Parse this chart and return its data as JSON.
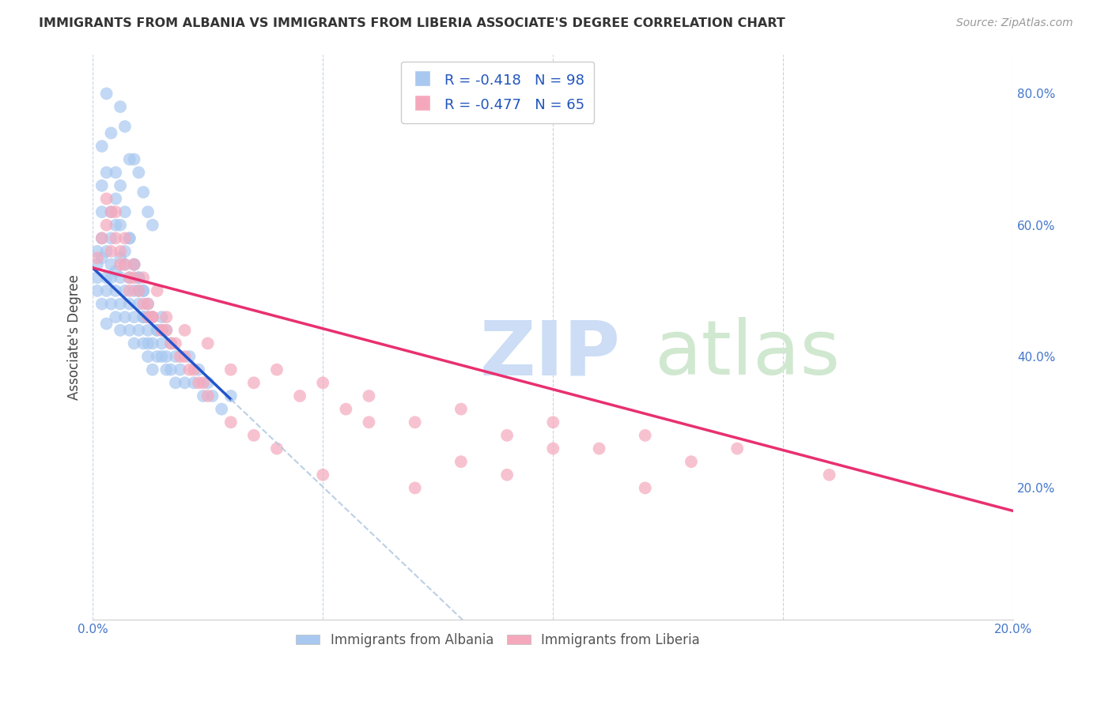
{
  "title": "IMMIGRANTS FROM ALBANIA VS IMMIGRANTS FROM LIBERIA ASSOCIATE'S DEGREE CORRELATION CHART",
  "source": "Source: ZipAtlas.com",
  "ylabel": "Associate's Degree",
  "x_min": 0.0,
  "x_max": 0.2,
  "y_min": 0.0,
  "y_max": 0.86,
  "albania_color": "#a8c8f0",
  "liberia_color": "#f5a8bc",
  "albania_line_color": "#2255cc",
  "liberia_line_color": "#e83070",
  "dash_color": "#b0c8e0",
  "albania_R": "-0.418",
  "albania_N": "98",
  "liberia_R": "-0.477",
  "liberia_N": "65",
  "legend_label_1": "Immigrants from Albania",
  "legend_label_2": "Immigrants from Liberia",
  "albania_scatter_x": [
    0.001,
    0.001,
    0.001,
    0.001,
    0.002,
    0.002,
    0.002,
    0.002,
    0.002,
    0.003,
    0.003,
    0.003,
    0.003,
    0.004,
    0.004,
    0.004,
    0.004,
    0.005,
    0.005,
    0.005,
    0.005,
    0.006,
    0.006,
    0.006,
    0.006,
    0.007,
    0.007,
    0.007,
    0.008,
    0.008,
    0.008,
    0.009,
    0.009,
    0.009,
    0.01,
    0.01,
    0.01,
    0.011,
    0.011,
    0.011,
    0.012,
    0.012,
    0.012,
    0.013,
    0.013,
    0.014,
    0.014,
    0.015,
    0.015,
    0.016,
    0.016,
    0.017,
    0.017,
    0.018,
    0.018,
    0.019,
    0.02,
    0.021,
    0.022,
    0.023,
    0.024,
    0.025,
    0.026,
    0.028,
    0.03,
    0.002,
    0.003,
    0.004,
    0.005,
    0.006,
    0.007,
    0.008,
    0.009,
    0.01,
    0.011,
    0.012,
    0.014,
    0.015,
    0.007,
    0.009,
    0.011,
    0.013,
    0.006,
    0.008,
    0.01,
    0.012,
    0.016,
    0.003,
    0.004,
    0.005,
    0.006,
    0.007,
    0.008,
    0.009,
    0.01,
    0.011,
    0.012,
    0.013
  ],
  "albania_scatter_y": [
    0.52,
    0.54,
    0.56,
    0.5,
    0.55,
    0.58,
    0.48,
    0.62,
    0.66,
    0.52,
    0.56,
    0.5,
    0.45,
    0.54,
    0.48,
    0.52,
    0.58,
    0.5,
    0.53,
    0.46,
    0.6,
    0.52,
    0.48,
    0.55,
    0.44,
    0.5,
    0.46,
    0.54,
    0.48,
    0.52,
    0.44,
    0.46,
    0.5,
    0.42,
    0.48,
    0.44,
    0.52,
    0.46,
    0.42,
    0.5,
    0.44,
    0.48,
    0.4,
    0.46,
    0.42,
    0.44,
    0.4,
    0.42,
    0.46,
    0.4,
    0.44,
    0.38,
    0.42,
    0.4,
    0.36,
    0.38,
    0.36,
    0.4,
    0.36,
    0.38,
    0.34,
    0.36,
    0.34,
    0.32,
    0.34,
    0.72,
    0.68,
    0.62,
    0.64,
    0.6,
    0.56,
    0.58,
    0.54,
    0.52,
    0.5,
    0.46,
    0.44,
    0.4,
    0.75,
    0.7,
    0.65,
    0.6,
    0.78,
    0.7,
    0.68,
    0.62,
    0.38,
    0.8,
    0.74,
    0.68,
    0.66,
    0.62,
    0.58,
    0.54,
    0.5,
    0.46,
    0.42,
    0.38
  ],
  "liberia_scatter_x": [
    0.001,
    0.002,
    0.003,
    0.004,
    0.005,
    0.006,
    0.007,
    0.008,
    0.009,
    0.01,
    0.011,
    0.012,
    0.013,
    0.014,
    0.015,
    0.016,
    0.018,
    0.02,
    0.022,
    0.025,
    0.03,
    0.035,
    0.04,
    0.045,
    0.05,
    0.055,
    0.06,
    0.07,
    0.08,
    0.09,
    0.1,
    0.11,
    0.12,
    0.13,
    0.14,
    0.16,
    0.003,
    0.005,
    0.007,
    0.009,
    0.011,
    0.013,
    0.015,
    0.017,
    0.019,
    0.021,
    0.023,
    0.025,
    0.03,
    0.035,
    0.04,
    0.05,
    0.06,
    0.07,
    0.08,
    0.09,
    0.1,
    0.12,
    0.008,
    0.012,
    0.016,
    0.02,
    0.024,
    0.004,
    0.006
  ],
  "liberia_scatter_y": [
    0.55,
    0.58,
    0.6,
    0.56,
    0.62,
    0.54,
    0.58,
    0.52,
    0.54,
    0.5,
    0.52,
    0.48,
    0.46,
    0.5,
    0.44,
    0.46,
    0.42,
    0.44,
    0.38,
    0.42,
    0.38,
    0.36,
    0.38,
    0.34,
    0.36,
    0.32,
    0.34,
    0.3,
    0.32,
    0.28,
    0.3,
    0.26,
    0.28,
    0.24,
    0.26,
    0.22,
    0.64,
    0.58,
    0.54,
    0.52,
    0.48,
    0.46,
    0.44,
    0.42,
    0.4,
    0.38,
    0.36,
    0.34,
    0.3,
    0.28,
    0.26,
    0.22,
    0.3,
    0.2,
    0.24,
    0.22,
    0.26,
    0.2,
    0.5,
    0.46,
    0.44,
    0.4,
    0.36,
    0.62,
    0.56
  ],
  "alb_line_x0": 0.0,
  "alb_line_y0": 0.535,
  "alb_line_x1": 0.03,
  "alb_line_y1": 0.335,
  "lib_line_x0": 0.0,
  "lib_line_y0": 0.535,
  "lib_line_x1": 0.2,
  "lib_line_y1": 0.165
}
